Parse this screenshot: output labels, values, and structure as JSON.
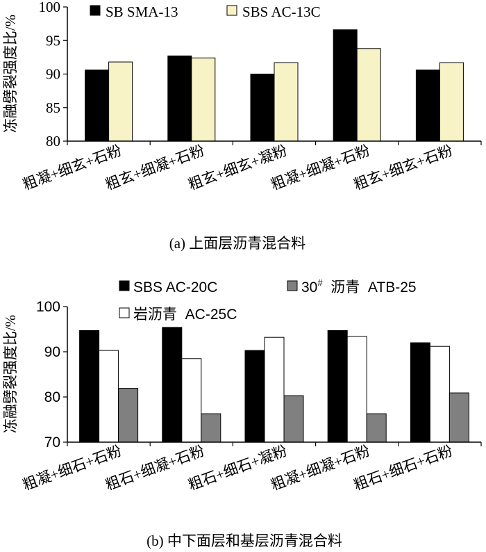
{
  "chart_data": [
    {
      "type": "bar",
      "title": "",
      "caption": "(a) 上面层沥青混合料",
      "ylabel": "冻融劈裂强度比/%",
      "xlabel": "",
      "ylim": [
        80,
        100
      ],
      "yticks": [
        80,
        85,
        90,
        95,
        100
      ],
      "grid": false,
      "legend_position": "top",
      "categories": [
        "粗凝+细玄+石粉",
        "粗玄+细凝+石粉",
        "粗玄+细玄+凝粉",
        "粗凝+细凝+石粉",
        "粗玄+细玄+石粉"
      ],
      "series": [
        {
          "name": "SB SMA-13",
          "color": "#000000",
          "values": [
            90.6,
            92.7,
            90.0,
            96.6,
            90.6
          ]
        },
        {
          "name": "SBS AC-13C",
          "color": "#f7f3c6",
          "values": [
            91.8,
            92.4,
            91.7,
            93.8,
            91.7
          ]
        }
      ]
    },
    {
      "type": "bar",
      "title": "",
      "caption": "(b) 中下面层和基层沥青混合料",
      "ylabel": "冻融劈裂强度比/%",
      "xlabel": "",
      "ylim": [
        70,
        100
      ],
      "yticks": [
        70,
        80,
        90,
        100
      ],
      "grid": false,
      "legend_position": "top",
      "categories": [
        "粗凝+细石+石粉",
        "粗石+细凝+石粉",
        "粗石+细石+凝粉",
        "粗凝+细凝+石粉",
        "粗石+细石+石粉"
      ],
      "series": [
        {
          "name": "SBS AC-20C",
          "color": "#000000",
          "values": [
            94.7,
            95.4,
            90.3,
            94.7,
            92.0
          ]
        },
        {
          "name": "岩沥青  AC-25C",
          "color": "#ffffff",
          "values": [
            90.3,
            88.5,
            93.2,
            93.4,
            91.2
          ]
        },
        {
          "name_prefix": "30",
          "name_sup": "#",
          "name": "  沥青  ATB-25",
          "color": "#808080",
          "values": [
            81.9,
            76.3,
            80.3,
            76.3,
            80.9
          ]
        }
      ]
    }
  ]
}
